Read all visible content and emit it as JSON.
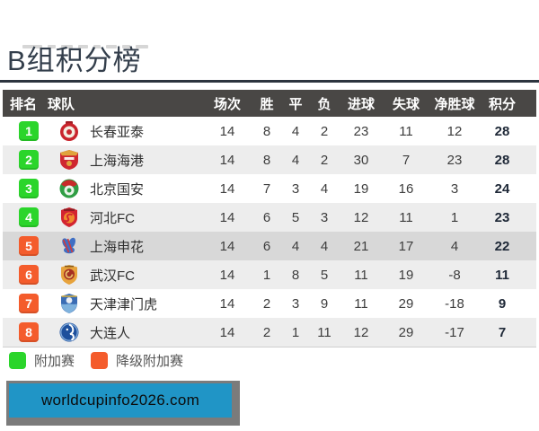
{
  "page": {
    "title": "B组积分榜",
    "watermark": "worldcupinfo2026.com"
  },
  "colors": {
    "playoff_green": "#2bd52b",
    "relegation_orange": "#f45c2c",
    "header_bg": "#494745",
    "zebra_row": "#ededed",
    "highlight_row": "#d8d8d8",
    "watermark_blue": "#2095c6",
    "watermark_frame": "#7b7b7b"
  },
  "table": {
    "headers": [
      "排名",
      "球队",
      "场次",
      "胜",
      "平",
      "负",
      "进球",
      "失球",
      "净胜球",
      "积分"
    ],
    "rows": [
      {
        "rank": 1,
        "badge": "green",
        "team": "长春亚泰",
        "logo": "changchun-yatai-crest",
        "played": 14,
        "won": 8,
        "drawn": 4,
        "lost": 2,
        "goals_for": 23,
        "goals_against": 11,
        "goal_diff": 12,
        "points": 28,
        "highlight": false
      },
      {
        "rank": 2,
        "badge": "green",
        "team": "上海海港",
        "logo": "shanghai-haigang-crest",
        "played": 14,
        "won": 8,
        "drawn": 4,
        "lost": 2,
        "goals_for": 30,
        "goals_against": 7,
        "goal_diff": 23,
        "points": 28,
        "highlight": false
      },
      {
        "rank": 3,
        "badge": "green",
        "team": "北京国安",
        "logo": "beijing-guoan-crest",
        "played": 14,
        "won": 7,
        "drawn": 3,
        "lost": 4,
        "goals_for": 19,
        "goals_against": 16,
        "goal_diff": 3,
        "points": 24,
        "highlight": false
      },
      {
        "rank": 4,
        "badge": "green",
        "team": "河北FC",
        "logo": "hebei-fc-crest",
        "played": 14,
        "won": 6,
        "drawn": 5,
        "lost": 3,
        "goals_for": 12,
        "goals_against": 11,
        "goal_diff": 1,
        "points": 23,
        "highlight": false
      },
      {
        "rank": 5,
        "badge": "orange",
        "team": "上海申花",
        "logo": "shanghai-shenhua-crest",
        "played": 14,
        "won": 6,
        "drawn": 4,
        "lost": 4,
        "goals_for": 21,
        "goals_against": 17,
        "goal_diff": 4,
        "points": 22,
        "highlight": true
      },
      {
        "rank": 6,
        "badge": "orange",
        "team": "武汉FC",
        "logo": "wuhan-fc-crest",
        "played": 14,
        "won": 1,
        "drawn": 8,
        "lost": 5,
        "goals_for": 11,
        "goals_against": 19,
        "goal_diff": -8,
        "points": 11,
        "highlight": false
      },
      {
        "rank": 7,
        "badge": "orange",
        "team": "天津津门虎",
        "logo": "tianjin-jinmenhu-crest",
        "played": 14,
        "won": 2,
        "drawn": 3,
        "lost": 9,
        "goals_for": 11,
        "goals_against": 29,
        "goal_diff": -18,
        "points": 9,
        "highlight": false
      },
      {
        "rank": 8,
        "badge": "orange",
        "team": "大连人",
        "logo": "dalian-ren-crest",
        "played": 14,
        "won": 2,
        "drawn": 1,
        "lost": 11,
        "goals_for": 12,
        "goals_against": 29,
        "goal_diff": -17,
        "points": 7,
        "highlight": false
      }
    ]
  },
  "legend": [
    {
      "color_key": "playoff_green",
      "label": "附加赛"
    },
    {
      "color_key": "relegation_orange",
      "label": "降级附加赛"
    }
  ]
}
